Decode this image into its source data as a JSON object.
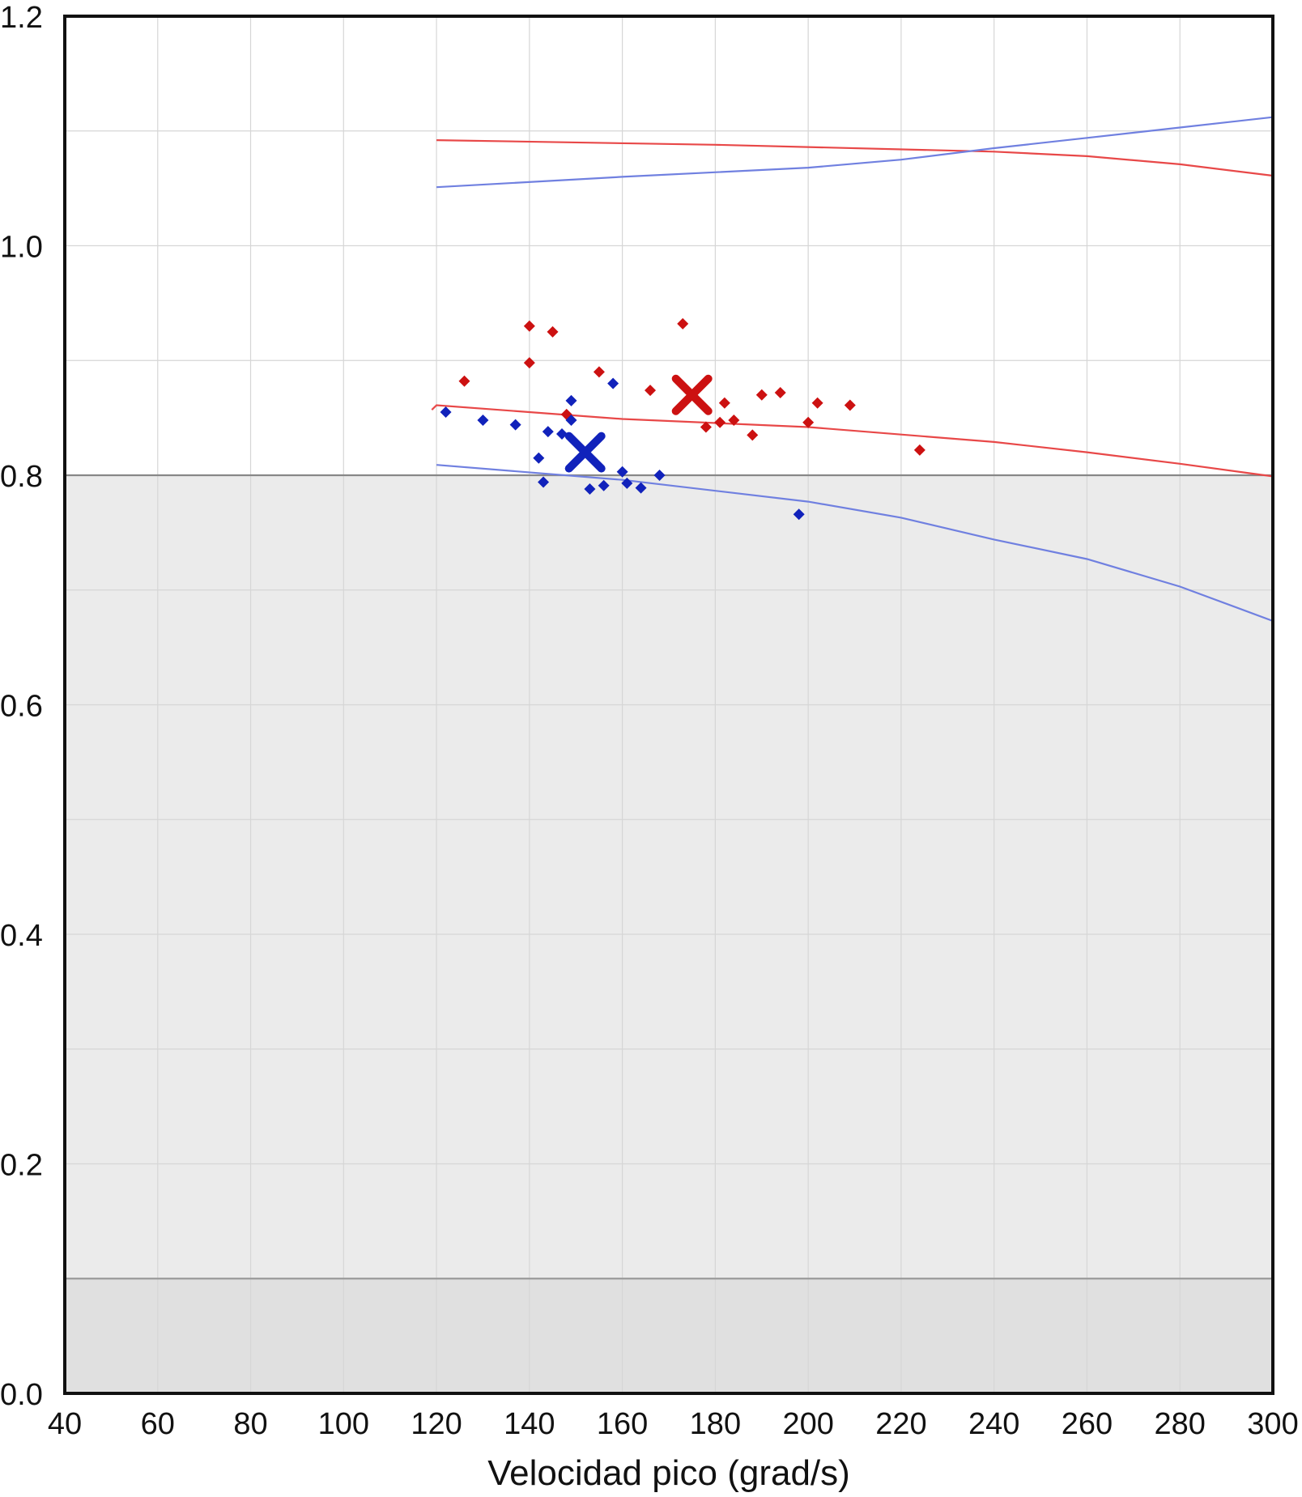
{
  "chart_data": {
    "type": "scatter",
    "title": "",
    "xlabel": "Velocidad pico (grad/s)",
    "ylabel": "",
    "xlim": [
      40,
      300
    ],
    "ylim": [
      0.0,
      1.2
    ],
    "x_ticks": [
      40,
      60,
      80,
      100,
      120,
      140,
      160,
      180,
      200,
      220,
      240,
      260,
      280,
      300
    ],
    "x_tick_labels": [
      "40",
      "60",
      "80",
      "100",
      "120",
      "140",
      "160",
      "180",
      "200",
      "220",
      "240",
      "260",
      "280",
      "300"
    ],
    "y_ticks": [
      0.0,
      0.2,
      0.4,
      0.6,
      0.8,
      1.0,
      1.2
    ],
    "y_tick_labels": [
      "0.0",
      "0.2",
      "0.4",
      "0.6",
      "0.8",
      "1.0",
      "1.2"
    ],
    "grid": true,
    "legend": "none",
    "shaded_regions": [
      {
        "y_from": 0.1,
        "y_to": 0.8,
        "color": "#ebebeb"
      },
      {
        "y_from": 0.0,
        "y_to": 0.1,
        "color": "#e0e0e0"
      }
    ],
    "reference_lines": [
      {
        "y": 0.8,
        "color": "#888888"
      },
      {
        "y": 0.1,
        "color": "#9a9a9a"
      }
    ],
    "series": [
      {
        "color": "#cc1111",
        "marker": "diamond",
        "points": [
          [
            126,
            0.882
          ],
          [
            140,
            0.93
          ],
          [
            145,
            0.925
          ],
          [
            140,
            0.898
          ],
          [
            148,
            0.853
          ],
          [
            155,
            0.89
          ],
          [
            166,
            0.874
          ],
          [
            173,
            0.932
          ],
          [
            178,
            0.842
          ],
          [
            181,
            0.846
          ],
          [
            182,
            0.863
          ],
          [
            184,
            0.848
          ],
          [
            188,
            0.835
          ],
          [
            190,
            0.87
          ],
          [
            194,
            0.872
          ],
          [
            200,
            0.846
          ],
          [
            202,
            0.863
          ],
          [
            209,
            0.861
          ],
          [
            224,
            0.822
          ]
        ],
        "mean_marker": [
          175,
          0.87
        ]
      },
      {
        "color": "#1122bb",
        "marker": "diamond",
        "points": [
          [
            122,
            0.855
          ],
          [
            130,
            0.848
          ],
          [
            137,
            0.844
          ],
          [
            142,
            0.815
          ],
          [
            144,
            0.838
          ],
          [
            143,
            0.794
          ],
          [
            147,
            0.836
          ],
          [
            149,
            0.865
          ],
          [
            149,
            0.848
          ],
          [
            153,
            0.788
          ],
          [
            156,
            0.791
          ],
          [
            158,
            0.88
          ],
          [
            160,
            0.803
          ],
          [
            161,
            0.793
          ],
          [
            164,
            0.789
          ],
          [
            168,
            0.8
          ],
          [
            198,
            0.766
          ]
        ],
        "mean_marker": [
          152,
          0.82
        ]
      }
    ],
    "curves": [
      {
        "color": "#e84848",
        "points": [
          [
            120,
            1.092
          ],
          [
            180,
            1.088
          ],
          [
            240,
            1.082
          ],
          [
            260,
            1.078
          ],
          [
            280,
            1.071
          ],
          [
            300,
            1.061
          ]
        ]
      },
      {
        "color": "#7080e0",
        "points": [
          [
            120,
            1.051
          ],
          [
            160,
            1.06
          ],
          [
            200,
            1.068
          ],
          [
            220,
            1.075
          ],
          [
            240,
            1.085
          ],
          [
            260,
            1.094
          ],
          [
            280,
            1.103
          ],
          [
            300,
            1.112
          ]
        ]
      },
      {
        "color": "#e84848",
        "points": [
          [
            119,
            0.857
          ],
          [
            120,
            0.861
          ],
          [
            160,
            0.849
          ],
          [
            200,
            0.842
          ],
          [
            240,
            0.829
          ],
          [
            260,
            0.82
          ],
          [
            280,
            0.81
          ],
          [
            300,
            0.799
          ]
        ]
      },
      {
        "color": "#7080e0",
        "points": [
          [
            120,
            0.809
          ],
          [
            160,
            0.796
          ],
          [
            200,
            0.777
          ],
          [
            220,
            0.763
          ],
          [
            240,
            0.744
          ],
          [
            260,
            0.727
          ],
          [
            280,
            0.703
          ],
          [
            300,
            0.673
          ]
        ]
      }
    ]
  }
}
